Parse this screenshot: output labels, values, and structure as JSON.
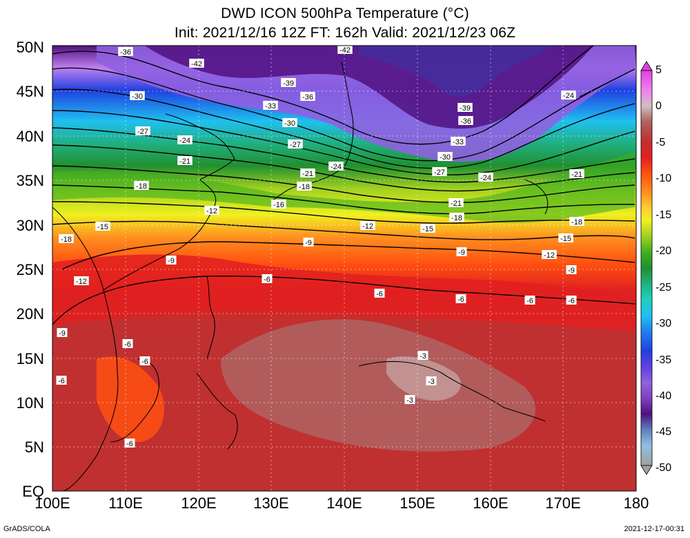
{
  "title_line1": "DWD ICON 500hPa Temperature (°C)",
  "title_line2": "Init: 2021/12/16 12Z  FT: 162h  Valid: 2021/12/23 06Z",
  "lat_labels": [
    "50N",
    "45N",
    "40N",
    "35N",
    "30N",
    "25N",
    "20N",
    "15N",
    "10N",
    "5N",
    "EQ"
  ],
  "lon_labels": [
    "100E",
    "110E",
    "120E",
    "130E",
    "140E",
    "150E",
    "160E",
    "170E",
    "180"
  ],
  "colorbar": {
    "labels": [
      "5",
      "0",
      "-5",
      "-10",
      "-15",
      "-20",
      "-25",
      "-30",
      "-35",
      "-40",
      "-45",
      "-50"
    ],
    "colors": {
      "c_p5": "#e040e0",
      "c_p3": "#f080f0",
      "c_0": "#d0c0c0",
      "c_m3": "#b06060",
      "c_m5": "#c03030",
      "c_m7": "#e02020",
      "c_m9": "#ff5010",
      "c_m11": "#ff9020",
      "c_m13": "#ffd030",
      "c_m15": "#f0f020",
      "c_m17": "#a0d020",
      "c_m19": "#40b020",
      "c_m21": "#209030",
      "c_m23": "#20b080",
      "c_m25": "#20d0c0",
      "c_m27": "#20c0f0",
      "c_m29": "#2080f0",
      "c_m31": "#2040e0",
      "c_m33": "#6040e0",
      "c_m35": "#9060e0",
      "c_m37": "#c080f0",
      "c_m39": "#8040c0",
      "c_m41": "#501080",
      "c_m43": "#4030a0",
      "c_m45": "#6080c0",
      "c_m47": "#90c0e0",
      "c_m49": "#a0a0a0"
    }
  },
  "contour_labels": [
    "-36",
    "-42",
    "-42",
    "-39",
    "-36",
    "-33",
    "-30",
    "-27",
    "-39",
    "-36",
    "-33",
    "-30",
    "-27",
    "-24",
    "-24",
    "-30",
    "-27",
    "-24",
    "-21",
    "-21",
    "-21",
    "-18",
    "-18",
    "-16",
    "-24",
    "-21",
    "-18",
    "-12",
    "-12",
    "-15",
    "-15",
    "-18",
    "-15",
    "-12",
    "-9",
    "-9",
    "-9",
    "-9",
    "-12",
    "-9",
    "-6",
    "-6",
    "-6",
    "-6",
    "-6",
    "-3",
    "-3",
    "-3",
    "-6",
    "-6",
    "-6",
    "-6",
    "-18"
  ],
  "footer_left": "GrADS/COLA",
  "footer_right": "2021-12-17-00:31"
}
